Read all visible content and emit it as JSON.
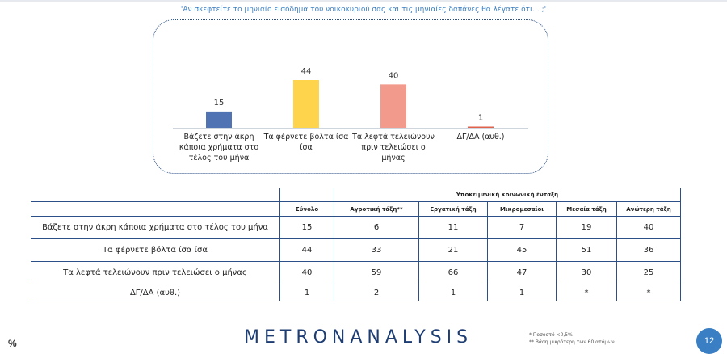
{
  "question": "'Αν σκεφτείτε το μηνιαίο εισόδημα του νοικοκυριού σας και τις μηνιαίες δαπάνες θα λέγατε ότι... ;'",
  "chart_data": {
    "type": "bar",
    "categories": [
      "Βάζετε στην άκρη κάποια χρήματα στο τέλος του μήνα",
      "Τα φέρνετε βόλτα ίσα ίσα",
      "Τα λεφτά τελειώνουν πριν τελειώσει ο μήνας",
      "ΔΓ/ΔΑ (αυθ.)"
    ],
    "values": [
      15,
      44,
      40,
      1
    ],
    "colors": [
      "#4f73b3",
      "#ffd44d",
      "#f29b8c",
      "#e0614c"
    ],
    "ylim": [
      0,
      50
    ],
    "grid": false,
    "data_labels": true
  },
  "table": {
    "group_header": "Υποκειμενική κοινωνική ένταξη",
    "columns": [
      "Σύνολο",
      "Αγροτική τάξη**",
      "Εργατική τάξη",
      "Μικρομεσαίοι",
      "Μεσαία τάξη",
      "Ανώτερη τάξη"
    ],
    "rows": [
      {
        "label": "Βάζετε στην άκρη κάποια χρήματα στο τέλος του μήνα",
        "values": [
          "15",
          "6",
          "11",
          "7",
          "19",
          "40"
        ]
      },
      {
        "label": "Τα φέρνετε βόλτα ίσα ίσα",
        "values": [
          "44",
          "33",
          "21",
          "45",
          "51",
          "36"
        ]
      },
      {
        "label": "Τα λεφτά τελειώνουν πριν τελειώσει ο μήνας",
        "values": [
          "40",
          "59",
          "66",
          "47",
          "30",
          "25"
        ]
      },
      {
        "label": "ΔΓ/ΔΑ (αυθ.)",
        "values": [
          "1",
          "2",
          "1",
          "1",
          "*",
          "*"
        ]
      }
    ],
    "highlight_color": "#e0614c"
  },
  "footer": {
    "percent": "%",
    "logo": "METRONANALYSIS",
    "note1": "*  Ποσοστό <0,5%",
    "note2": "** Βάση μικρότερη των 60 ατόμων",
    "page": "12"
  }
}
